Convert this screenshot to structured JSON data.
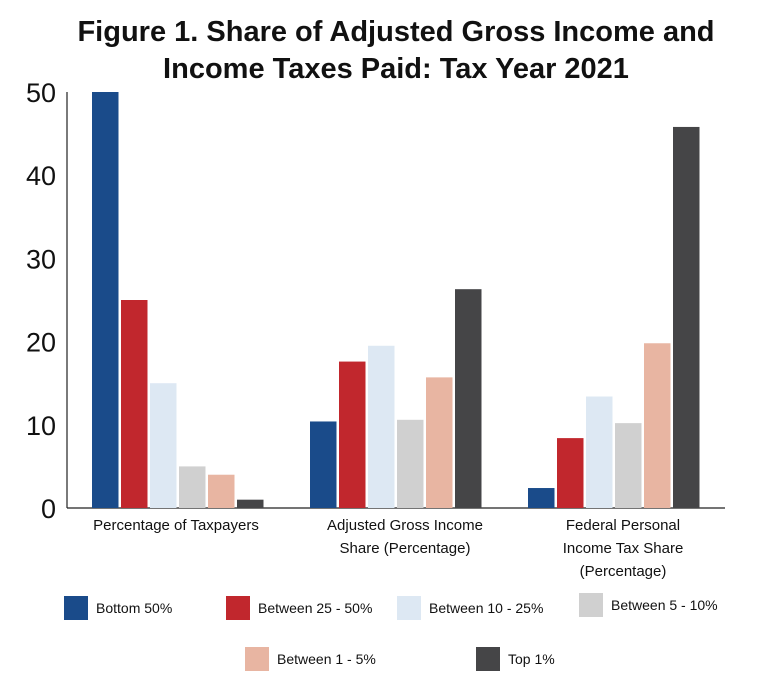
{
  "chart_data": {
    "type": "bar",
    "title_lines": [
      "Figure 1. Share of Adjusted Gross Income and",
      "Income Taxes Paid: Tax Year 2021"
    ],
    "categories": [
      [
        "Percentage of Taxpayers"
      ],
      [
        "Adjusted Gross Income",
        "Share (Percentage)"
      ],
      [
        "Federal Personal",
        "Income Tax Share",
        "(Percentage)"
      ]
    ],
    "series": [
      {
        "name": "Bottom 50%",
        "color": "#1a4b8a",
        "values": [
          50,
          10.4,
          2.4
        ]
      },
      {
        "name": "Between 25 - 50%",
        "color": "#c1272d",
        "values": [
          25,
          17.6,
          8.4
        ]
      },
      {
        "name": "Between 10 - 25%",
        "color": "#dde8f3",
        "values": [
          15,
          19.5,
          13.4
        ]
      },
      {
        "name": "Between 5 - 10%",
        "color": "#d0d0d0",
        "values": [
          5,
          10.6,
          10.2
        ]
      },
      {
        "name": "Between 1 - 5%",
        "color": "#e8b5a2",
        "values": [
          4,
          15.7,
          19.8
        ]
      },
      {
        "name": "Top 1%",
        "color": "#454547",
        "values": [
          1,
          26.3,
          45.8
        ]
      }
    ],
    "ylim": [
      0,
      50
    ],
    "yticks": [
      "0",
      "10",
      "20",
      "30",
      "40",
      "50"
    ],
    "xlabel": "",
    "ylabel": "",
    "grid": false,
    "legend_position": "bottom"
  }
}
